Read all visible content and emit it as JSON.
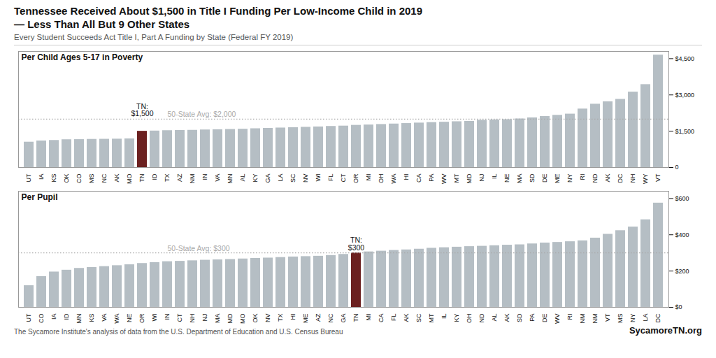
{
  "title": "Tennessee Received About $1,500 in Title I Funding Per Low-Income Child in 2019\n— Less Than All But 9 Other States",
  "subtitle": "Every Student Succeeds Act Title I, Part A Funding by State (Federal FY 2019)",
  "footnote": "The Sycamore Institute's analysis of data from the U.S. Department of Education and U.S. Census Bureau",
  "brand": "SycamoreTN.org",
  "chart_data": [
    {
      "type": "bar",
      "title": "Per Child Ages 5-17 in Poverty",
      "categories": [
        "UT",
        "IA",
        "KS",
        "OK",
        "CO",
        "MS",
        "NC",
        "AK",
        "MO",
        "TN",
        "ID",
        "TX",
        "AZ",
        "NM",
        "IN",
        "VA",
        "MN",
        "AL",
        "KY",
        "GA",
        "LA",
        "SC",
        "NV",
        "WI",
        "FL",
        "CT",
        "OR",
        "MI",
        "OH",
        "WA",
        "HI",
        "CA",
        "PA",
        "WV",
        "MT",
        "MD",
        "NJ",
        "IL",
        "NE",
        "MA",
        "SD",
        "DE",
        "ME",
        "NY",
        "RI",
        "ND",
        "AK",
        "DC",
        "NH",
        "WY",
        "VT"
      ],
      "values": [
        1050,
        1100,
        1120,
        1150,
        1155,
        1165,
        1170,
        1175,
        1185,
        1500,
        1510,
        1525,
        1535,
        1540,
        1555,
        1565,
        1575,
        1585,
        1605,
        1620,
        1635,
        1650,
        1665,
        1680,
        1700,
        1715,
        1745,
        1760,
        1780,
        1800,
        1820,
        1840,
        1860,
        1875,
        1895,
        1910,
        1955,
        1970,
        1980,
        2010,
        2055,
        2110,
        2160,
        2210,
        2420,
        2620,
        2720,
        2820,
        3120,
        3430,
        4650
      ],
      "colors": [
        "#b5bec4",
        "#b5bec4",
        "#b5bec4",
        "#b5bec4",
        "#b5bec4",
        "#b5bec4",
        "#b5bec4",
        "#b5bec4",
        "#b5bec4",
        "#6b2020",
        "#b5bec4",
        "#b5bec4",
        "#b5bec4",
        "#b5bec4",
        "#b5bec4",
        "#b5bec4",
        "#b5bec4",
        "#b5bec4",
        "#b5bec4",
        "#b5bec4",
        "#b5bec4",
        "#b5bec4",
        "#b5bec4",
        "#b5bec4",
        "#b5bec4",
        "#b5bec4",
        "#b5bec4",
        "#b5bec4",
        "#b5bec4",
        "#b5bec4",
        "#b5bec4",
        "#b5bec4",
        "#b5bec4",
        "#b5bec4",
        "#b5bec4",
        "#b5bec4",
        "#b5bec4",
        "#b5bec4",
        "#b5bec4",
        "#b5bec4",
        "#b5bec4",
        "#b5bec4",
        "#b5bec4",
        "#b5bec4",
        "#b5bec4",
        "#b5bec4",
        "#b5bec4",
        "#b5bec4",
        "#b5bec4",
        "#b5bec4",
        "#b5bec4"
      ],
      "ylim": [
        0,
        4800
      ],
      "yticks": [
        0,
        {
          "value": 1500,
          "label": "$1,500"
        },
        {
          "value": 3000,
          "label": "$3,000"
        },
        {
          "value": 4500,
          "label": "$4,500"
        }
      ],
      "average": {
        "value": 2000,
        "label": "50-State Avg: $2,000",
        "color": "#aaaaaa",
        "line_style": "dotted"
      },
      "annotations": [
        {
          "text": "TN:\n$1,500",
          "category": "TN"
        }
      ],
      "grid": false
    },
    {
      "type": "bar",
      "title": "Per Pupil",
      "categories": [
        "UT",
        "CO",
        "IA",
        "ID",
        "MN",
        "KS",
        "VA",
        "WA",
        "NE",
        "OR",
        "WI",
        "IN",
        "CT",
        "NH",
        "NJ",
        "MA",
        "MD",
        "MO",
        "OK",
        "NV",
        "TX",
        "HI",
        "ME",
        "AZ",
        "NC",
        "GA",
        "TN",
        "MI",
        "CA",
        "FL",
        "AK",
        "SC",
        "MT",
        "IL",
        "KY",
        "OH",
        "ND",
        "AL",
        "AK",
        "SD",
        "PA",
        "DE",
        "WV",
        "RI",
        "NM",
        "NM",
        "VT",
        "MS",
        "NY",
        "LA",
        "DC"
      ],
      "values": [
        120,
        170,
        195,
        205,
        215,
        220,
        225,
        230,
        235,
        242,
        247,
        252,
        254,
        257,
        260,
        262,
        264,
        267,
        270,
        272,
        275,
        278,
        280,
        282,
        286,
        292,
        300,
        306,
        310,
        314,
        317,
        321,
        326,
        329,
        332,
        335,
        337,
        340,
        343,
        345,
        350,
        355,
        358,
        362,
        367,
        382,
        403,
        423,
        443,
        483,
        575
      ],
      "colors": [
        "#b5bec4",
        "#b5bec4",
        "#b5bec4",
        "#b5bec4",
        "#b5bec4",
        "#b5bec4",
        "#b5bec4",
        "#b5bec4",
        "#b5bec4",
        "#b5bec4",
        "#b5bec4",
        "#b5bec4",
        "#b5bec4",
        "#b5bec4",
        "#b5bec4",
        "#b5bec4",
        "#b5bec4",
        "#b5bec4",
        "#b5bec4",
        "#b5bec4",
        "#b5bec4",
        "#b5bec4",
        "#b5bec4",
        "#b5bec4",
        "#b5bec4",
        "#b5bec4",
        "#6b2020",
        "#b5bec4",
        "#b5bec4",
        "#b5bec4",
        "#b5bec4",
        "#b5bec4",
        "#b5bec4",
        "#b5bec4",
        "#b5bec4",
        "#b5bec4",
        "#b5bec4",
        "#b5bec4",
        "#b5bec4",
        "#b5bec4",
        "#b5bec4",
        "#b5bec4",
        "#b5bec4",
        "#b5bec4",
        "#b5bec4",
        "#b5bec4",
        "#b5bec4",
        "#b5bec4",
        "#b5bec4",
        "#b5bec4",
        "#b5bec4"
      ],
      "ylim": [
        0,
        640
      ],
      "yticks": [
        {
          "value": 0,
          "label": "$0"
        },
        {
          "value": 200,
          "label": "$200"
        },
        {
          "value": 400,
          "label": "$400"
        },
        {
          "value": 600,
          "label": "$600"
        }
      ],
      "average": {
        "value": 300,
        "label": "50-State Avg: $300",
        "color": "#aaaaaa",
        "line_style": "dotted"
      },
      "annotations": [
        {
          "text": "TN:\n$300",
          "category": "TN"
        }
      ],
      "grid": false
    }
  ]
}
